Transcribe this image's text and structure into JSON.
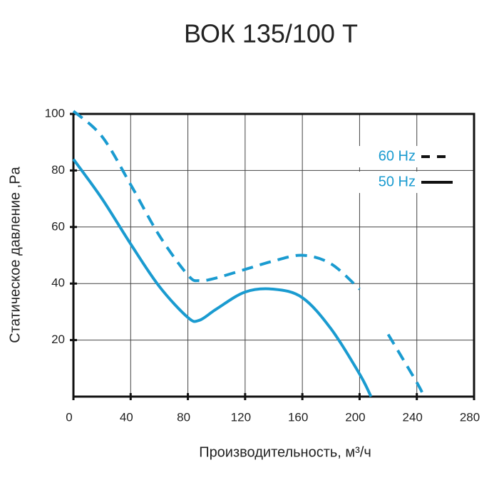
{
  "chart_data": {
    "type": "line",
    "title": "ВОК 135/100 Т",
    "x_label": "Производительность, м³/ч",
    "y_label": "Статическое давление ,Pa",
    "x": [
      0,
      20,
      40,
      60,
      80,
      88,
      100,
      120,
      140,
      160,
      180,
      200,
      208,
      220,
      240,
      245
    ],
    "series": [
      {
        "name": "60 Hz",
        "color": "#1a9bd0",
        "line_style": "dashed",
        "values": [
          101,
          92,
          75,
          57,
          43,
          41,
          42,
          45,
          48,
          50,
          47,
          38,
          null,
          22,
          5,
          0
        ]
      },
      {
        "name": "50 Hz",
        "color": "#1a9bd0",
        "line_style": "solid",
        "values": [
          84,
          70,
          54,
          39,
          28,
          27,
          31,
          37,
          38,
          35,
          24,
          8,
          0,
          null,
          null,
          null
        ]
      }
    ],
    "xlim": [
      0,
      280
    ],
    "xticks": [
      0,
      40,
      80,
      120,
      160,
      200,
      240,
      280
    ],
    "ylim": [
      0,
      100
    ],
    "yticks": [
      20,
      40,
      60,
      80,
      100
    ],
    "grid": true,
    "legend": "upper right"
  }
}
